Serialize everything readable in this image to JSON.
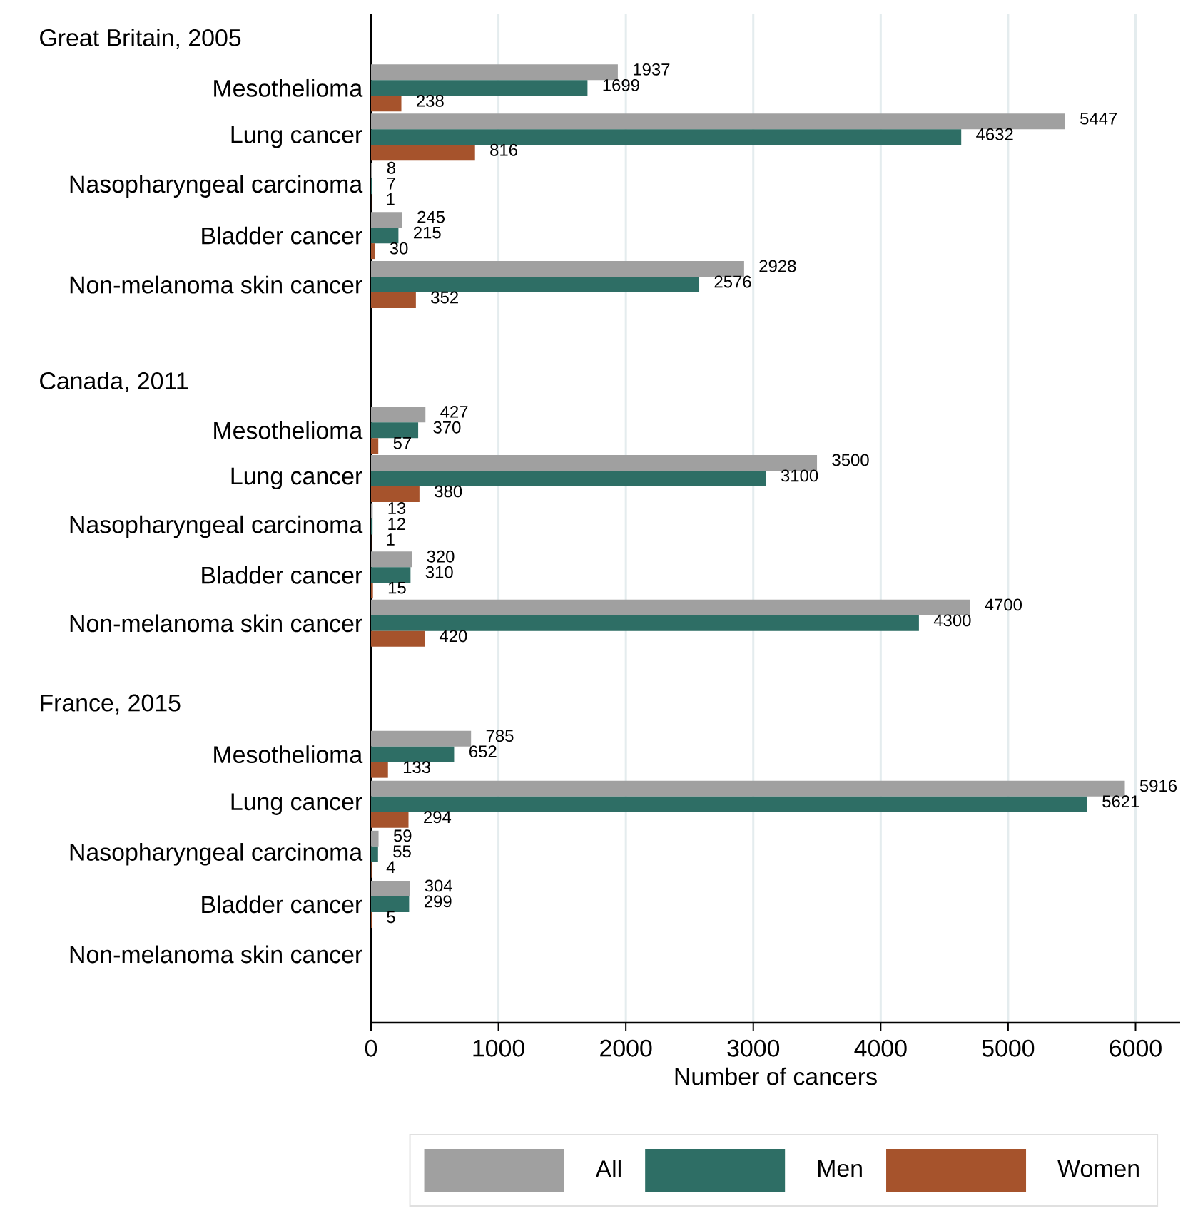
{
  "chart_data": [
    {
      "type": "bar",
      "orientation": "horizontal",
      "title": "Great Britain, 2005",
      "categories": [
        "Mesothelioma",
        "Lung cancer",
        "Nasopharyngeal carcinoma",
        "Bladder cancer",
        "Non-melanoma skin cancer"
      ],
      "series": [
        {
          "color": "#a0a0a0",
          "values": [
            1937,
            5447,
            8,
            245,
            2928
          ]
        },
        {
          "color": "#2e6e65",
          "values": [
            1699,
            4632,
            7,
            215,
            2576
          ]
        },
        {
          "color": "#a6532c",
          "values": [
            238,
            816,
            1,
            30,
            352
          ]
        }
      ],
      "xticks": [
        0,
        1000,
        2000,
        3000,
        4000,
        5000,
        6000
      ],
      "tick_labels": "y",
      "grid": "x",
      "data_labels": true
    },
    {
      "type": "bar",
      "orientation": "horizontal",
      "title": "Canada, 2011",
      "categories": [
        "Mesothelioma",
        "Lung cancer",
        "Nasopharyngeal carcinoma",
        "Bladder cancer",
        "Non-melanoma skin cancer"
      ],
      "series": [
        {
          "color": "#a0a0a0",
          "values": [
            427,
            3500,
            13,
            320,
            4700
          ]
        },
        {
          "color": "#2e6e65",
          "values": [
            370,
            3100,
            12,
            310,
            4300
          ]
        },
        {
          "color": "#a6532c",
          "values": [
            57,
            380,
            1,
            15,
            420
          ]
        }
      ],
      "xticks": [
        0,
        1000,
        2000,
        3000,
        4000,
        5000,
        6000
      ],
      "tick_labels": "y",
      "grid": "x",
      "data_labels": true
    },
    {
      "type": "bar",
      "orientation": "horizontal",
      "title": "France, 2015",
      "xlabel": "Number of cancers",
      "categories": [
        "Mesothelioma",
        "Lung cancer",
        "Nasopharyngeal carcinoma",
        "Bladder cancer",
        "Non-melanoma skin cancer"
      ],
      "series": [
        {
          "name": "All",
          "color": "#a0a0a0",
          "values": [
            785,
            5916,
            59,
            304,
            null
          ]
        },
        {
          "name": "Men",
          "color": "#2e6e65",
          "values": [
            652,
            5621,
            55,
            299,
            null
          ]
        },
        {
          "name": "Women",
          "color": "#a6532c",
          "values": [
            133,
            294,
            4,
            5,
            null
          ]
        }
      ],
      "xlim": [
        0,
        6350
      ],
      "xticks": [
        0,
        1000,
        2000,
        3000,
        4000,
        5000,
        6000
      ],
      "grid": "x",
      "data_labels": true,
      "legend": "bottom"
    }
  ]
}
